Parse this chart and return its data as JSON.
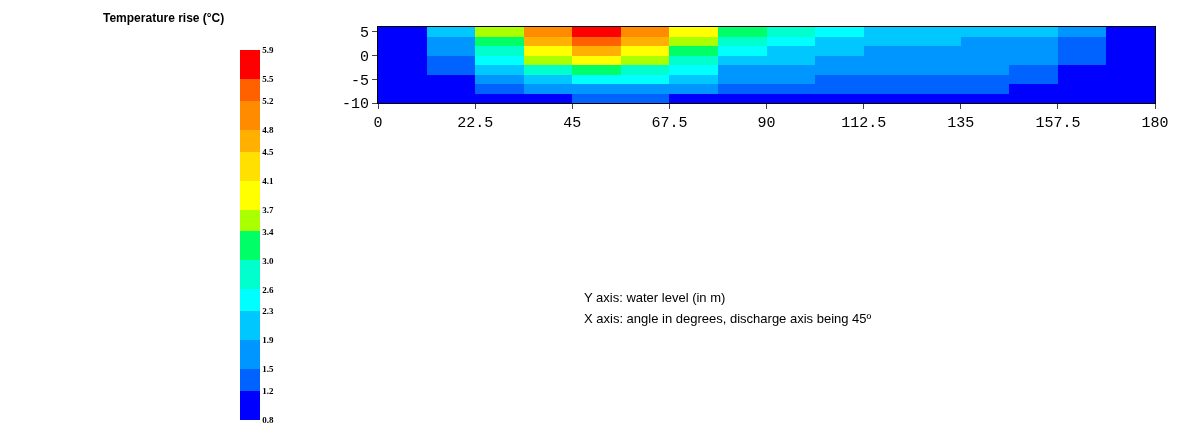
{
  "chart_data": {
    "type": "heatmap",
    "clabel": "Temperature rise (°C)",
    "x": [
      5.625,
      16.875,
      28.125,
      39.375,
      50.625,
      61.875,
      73.125,
      84.375,
      95.625,
      106.875,
      118.125,
      129.375,
      140.625,
      151.875,
      163.125,
      174.375
    ],
    "y": [
      5,
      3,
      1,
      -1,
      -3,
      -5,
      -7,
      -9
    ],
    "cells": [
      [
        1.0,
        2.0,
        3.4,
        5.0,
        5.7,
        5.0,
        3.8,
        3.0,
        2.6,
        2.3,
        2.1,
        2.0,
        2.0,
        1.9,
        1.5,
        1.0
      ],
      [
        0.9,
        1.8,
        3.1,
        4.5,
        5.2,
        4.6,
        3.4,
        2.7,
        2.4,
        2.1,
        2.0,
        1.9,
        1.8,
        1.7,
        1.4,
        0.9
      ],
      [
        0.9,
        1.6,
        2.7,
        4.0,
        4.6,
        4.0,
        3.0,
        2.4,
        2.1,
        1.9,
        1.8,
        1.7,
        1.7,
        1.6,
        1.3,
        0.9
      ],
      [
        0.9,
        1.4,
        2.3,
        3.4,
        3.9,
        3.4,
        2.7,
        2.1,
        1.9,
        1.7,
        1.7,
        1.6,
        1.6,
        1.5,
        1.2,
        0.9
      ],
      [
        0.9,
        1.2,
        1.9,
        2.8,
        3.2,
        2.9,
        2.3,
        1.8,
        1.7,
        1.6,
        1.5,
        1.5,
        1.5,
        1.4,
        1.1,
        0.9
      ],
      [
        0.9,
        1.0,
        1.6,
        2.2,
        2.5,
        2.4,
        2.0,
        1.6,
        1.5,
        1.4,
        1.4,
        1.4,
        1.3,
        1.2,
        1.0,
        0.9
      ],
      [
        0.9,
        0.9,
        1.3,
        1.6,
        1.8,
        1.7,
        1.5,
        1.3,
        1.3,
        1.3,
        1.2,
        1.2,
        1.2,
        1.1,
        0.9,
        0.9
      ],
      [
        0.9,
        0.9,
        1.0,
        1.1,
        1.2,
        1.2,
        1.1,
        1.0,
        1.0,
        1.0,
        1.0,
        1.0,
        1.0,
        0.9,
        0.9,
        0.9
      ]
    ],
    "clim": [
      0.8,
      5.9
    ],
    "cticks": [
      0.8,
      1.2,
      1.5,
      1.9,
      2.3,
      2.6,
      {
        "value": 3.0,
        "label": "3.0"
      },
      3.4,
      3.7,
      4.1,
      4.5,
      4.8,
      5.2,
      5.5,
      5.9
    ],
    "colors": [
      "#0000ff",
      "#0062ff",
      "#0096ff",
      "#00c8ff",
      "#00ffff",
      "#00ffcc",
      "#00ff66",
      "#aaff00",
      "#ffff00",
      "#ffe000",
      "#ffb000",
      "#ff8c00",
      "#ff6000",
      "#ff0000"
    ],
    "xlim": [
      0,
      180
    ],
    "xticks": [
      0,
      22.5,
      45,
      67.5,
      90,
      112.5,
      135,
      157.5,
      180
    ],
    "ylim": [
      -10,
      6
    ],
    "yticks": [
      5,
      0,
      -5,
      -10
    ],
    "annotations": [
      "Y axis: water level (in m)",
      "X axis: angle in degrees, discharge axis being 45º"
    ]
  }
}
